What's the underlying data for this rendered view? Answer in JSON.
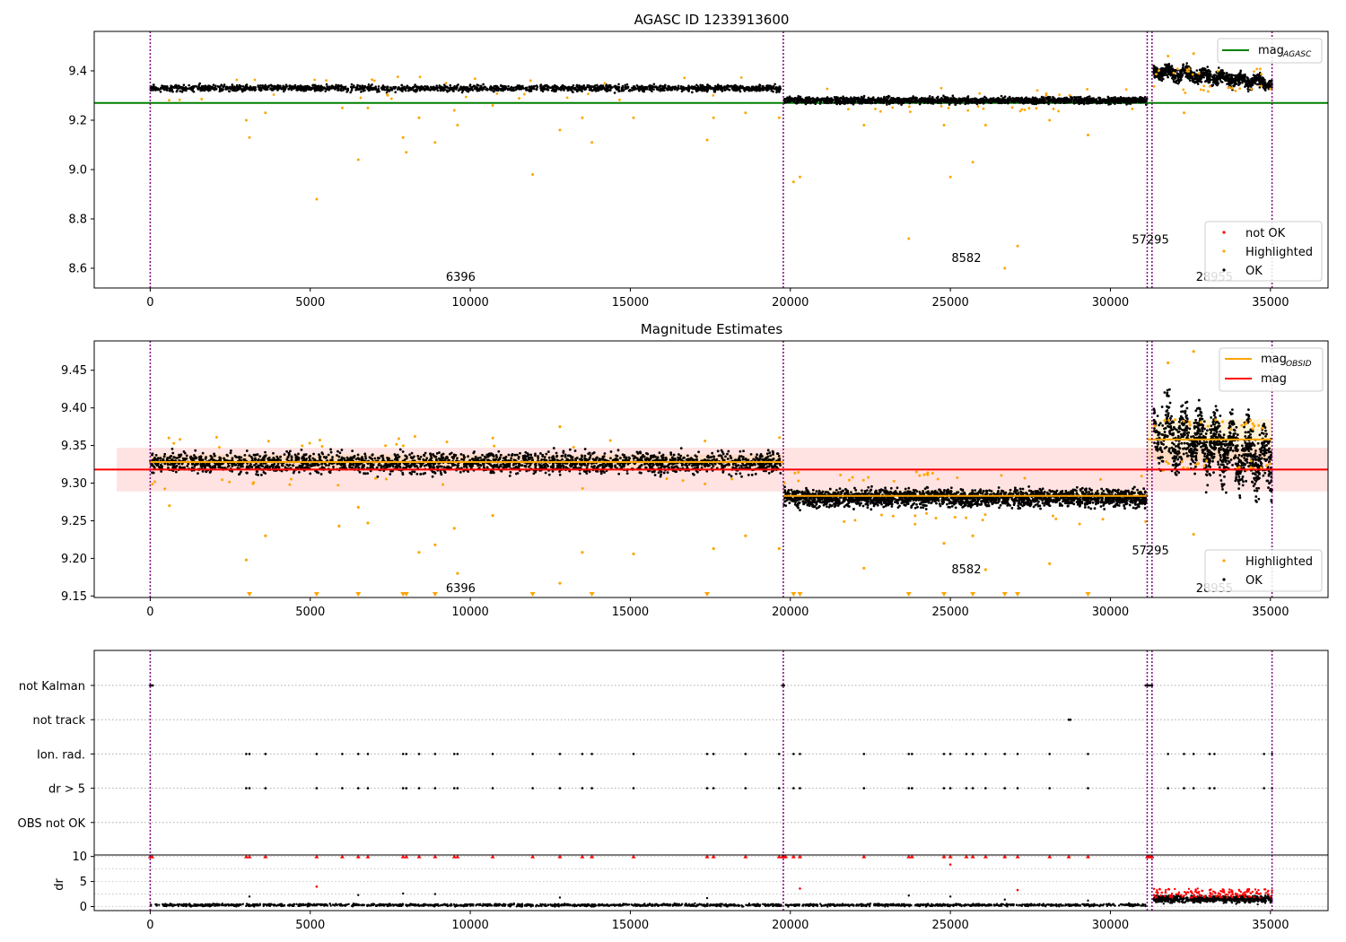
{
  "figure": {
    "panel1_title": "AGASC ID 1233913600",
    "panel2_title": "Magnitude Estimates"
  },
  "colors": {
    "ok": "#000000",
    "highlighted": "#ffa500",
    "not_ok": "#ff0000",
    "mag_agasc": "#008000",
    "mag": "#ff0000",
    "mag_obsid": "#ffa500",
    "obs_boundary": "#800080",
    "band": "#ffc0c0"
  },
  "chart_data": [
    {
      "type": "scatter",
      "title": "AGASC ID 1233913600",
      "xlim": [
        -1750,
        36800
      ],
      "ylim": [
        8.52,
        9.56
      ],
      "xticks": [
        "0",
        "5000",
        "10000",
        "15000",
        "20000",
        "25000",
        "30000",
        "35000",
        "40000"
      ],
      "yticks": [
        "8.6",
        "8.8",
        "9.0",
        "9.2",
        "9.4"
      ],
      "legend_lines": [
        {
          "label": "mag",
          "subscript": "AGASC",
          "value": 9.27
        }
      ],
      "legend_points": [
        "not OK",
        "Highlighted",
        "OK"
      ],
      "obs_boundaries": [
        0,
        19780,
        31150,
        31300,
        35050
      ],
      "obs_labels": [
        {
          "text": "6396",
          "x": 9700,
          "y": 8.55
        },
        {
          "text": "8582",
          "x": 25500,
          "y": 8.625
        },
        {
          "text": "57295",
          "x": 31250,
          "y": 8.7
        },
        {
          "text": "28955",
          "x": 33250,
          "y": 8.55
        }
      ],
      "segments": [
        {
          "x0": 0,
          "x1": 19700,
          "level": 9.33
        },
        {
          "x0": 19800,
          "x1": 31150,
          "level": 9.28
        },
        {
          "x0": 31350,
          "x1": 35050,
          "level": 9.36
        }
      ],
      "highlighted_outliers": [
        [
          3000,
          9.2
        ],
        [
          3100,
          9.13
        ],
        [
          3600,
          9.23
        ],
        [
          5200,
          8.88
        ],
        [
          6000,
          9.25
        ],
        [
          6500,
          9.04
        ],
        [
          6800,
          9.25
        ],
        [
          7900,
          9.13
        ],
        [
          8000,
          9.07
        ],
        [
          8400,
          9.21
        ],
        [
          8900,
          9.11
        ],
        [
          9500,
          9.24
        ],
        [
          9600,
          9.18
        ],
        [
          10700,
          9.26
        ],
        [
          11950,
          8.98
        ],
        [
          12800,
          9.16
        ],
        [
          13500,
          9.21
        ],
        [
          13800,
          9.11
        ],
        [
          15100,
          9.21
        ],
        [
          17400,
          9.12
        ],
        [
          17600,
          9.21
        ],
        [
          18600,
          9.23
        ],
        [
          19650,
          9.21
        ],
        [
          20100,
          8.95
        ],
        [
          20300,
          8.97
        ],
        [
          22300,
          9.18
        ],
        [
          23700,
          8.72
        ],
        [
          24800,
          9.18
        ],
        [
          25000,
          8.97
        ],
        [
          25700,
          9.03
        ],
        [
          26100,
          9.18
        ],
        [
          26700,
          8.6
        ],
        [
          27100,
          8.69
        ],
        [
          28100,
          9.2
        ],
        [
          29300,
          9.14
        ],
        [
          32300,
          9.23
        ],
        [
          31800,
          9.46
        ],
        [
          32600,
          9.47
        ]
      ]
    },
    {
      "type": "scatter",
      "title": "Magnitude Estimates",
      "xlim": [
        -1750,
        36800
      ],
      "ylim": [
        9.148,
        9.489
      ],
      "xticks": [
        "0",
        "5000",
        "10000",
        "15000",
        "20000",
        "25000",
        "30000",
        "35000",
        "40000"
      ],
      "yticks": [
        "9.15",
        "9.20",
        "9.25",
        "9.30",
        "9.35",
        "9.40",
        "9.45"
      ],
      "legend_lines": [
        {
          "label": "mag",
          "subscript": "OBSID",
          "color_key": "mag_obsid"
        },
        {
          "label": "mag",
          "subscript": "",
          "color_key": "mag"
        }
      ],
      "legend_points": [
        "Highlighted",
        "OK"
      ],
      "mag": 9.318,
      "mag_band": [
        9.289,
        9.347
      ],
      "mag_obsid": [
        {
          "x0": 0,
          "x1": 19780,
          "value": 9.328,
          "band": [
            9.318,
            9.338
          ]
        },
        {
          "x0": 19780,
          "x1": 31150,
          "value": 9.283,
          "band": [
            9.275,
            9.291
          ]
        },
        {
          "x0": 31150,
          "x1": 35050,
          "value": 9.358,
          "band": [
            9.33,
            9.385
          ]
        }
      ],
      "obs_boundaries": [
        0,
        19780,
        31150,
        31300,
        35050
      ],
      "obs_labels": [
        {
          "text": "6396",
          "x": 9700,
          "y": 9.155
        },
        {
          "text": "8582",
          "x": 25500,
          "y": 9.18
        },
        {
          "text": "57295",
          "x": 31250,
          "y": 9.205
        },
        {
          "text": "28955",
          "x": 33250,
          "y": 9.155
        }
      ],
      "segments": [
        {
          "x0": 0,
          "x1": 19700,
          "level": 9.327,
          "spread": 0.022
        },
        {
          "x0": 19800,
          "x1": 31150,
          "level": 9.28,
          "spread": 0.018
        },
        {
          "x0": 31350,
          "x1": 35050,
          "level": 9.35,
          "spread": 0.07
        }
      ],
      "clipped_markers_x": [
        3100,
        5200,
        6500,
        7900,
        8000,
        8900,
        11950,
        13800,
        17400,
        20100,
        20300,
        23700,
        24800,
        25700,
        26700,
        27100,
        29300
      ],
      "highlighted_outliers": [
        [
          3000,
          9.198
        ],
        [
          3600,
          9.23
        ],
        [
          5900,
          9.243
        ],
        [
          6500,
          9.268
        ],
        [
          6800,
          9.247
        ],
        [
          8400,
          9.208
        ],
        [
          8900,
          9.218
        ],
        [
          9500,
          9.24
        ],
        [
          9600,
          9.18
        ],
        [
          10700,
          9.257
        ],
        [
          12800,
          9.167
        ],
        [
          13500,
          9.208
        ],
        [
          15100,
          9.206
        ],
        [
          17600,
          9.213
        ],
        [
          18600,
          9.23
        ],
        [
          19650,
          9.213
        ],
        [
          22300,
          9.187
        ],
        [
          24800,
          9.22
        ],
        [
          25700,
          9.23
        ],
        [
          26100,
          9.185
        ],
        [
          28100,
          9.193
        ],
        [
          32600,
          9.232
        ],
        [
          31800,
          9.46
        ],
        [
          32600,
          9.475
        ],
        [
          600,
          9.27
        ],
        [
          12800,
          9.375
        ]
      ]
    },
    {
      "type": "scatter",
      "title": "",
      "xlim": [
        -1750,
        36800
      ],
      "categories": [
        "not Kalman",
        "not track",
        "Ion. rad.",
        "dr > 5",
        "OBS not OK"
      ],
      "flags": {
        "not Kalman": [
          0,
          40,
          80,
          19750,
          19800,
          31100,
          31150,
          31200,
          31250,
          31300
        ],
        "not track": [
          28700,
          28750
        ],
        "Ion. rad.": [
          3000,
          3100,
          3600,
          5200,
          6000,
          6500,
          6800,
          7900,
          8000,
          8400,
          8900,
          9500,
          9600,
          10700,
          11950,
          12800,
          13500,
          13800,
          15100,
          17400,
          17600,
          18600,
          19650,
          20100,
          20300,
          22300,
          23700,
          23800,
          24800,
          25000,
          25500,
          25700,
          26100,
          26700,
          27100,
          28100,
          29300,
          31800,
          32300,
          32600,
          33100,
          33250,
          34800,
          35050
        ],
        "dr > 5": [
          3000,
          3100,
          3600,
          5200,
          6000,
          6500,
          6800,
          7900,
          8000,
          8400,
          8900,
          9500,
          9600,
          10700,
          11950,
          12800,
          13500,
          13800,
          15100,
          17400,
          17600,
          18600,
          19650,
          20100,
          20300,
          22300,
          23700,
          23800,
          24800,
          25000,
          25500,
          25700,
          26100,
          26700,
          27100,
          28100,
          29300,
          31800,
          32300,
          32600,
          33100,
          33250,
          34800,
          35050
        ],
        "OBS not OK": []
      },
      "obs_boundaries": [
        0,
        19780,
        31150,
        31300,
        35050
      ]
    },
    {
      "type": "scatter",
      "title": "",
      "ylabel": "dr",
      "xlim": [
        -1750,
        36800
      ],
      "ylim": [
        -0.8,
        10.3
      ],
      "xticks": [
        "0",
        "5000",
        "10000",
        "15000",
        "20000",
        "25000",
        "30000",
        "35000",
        "40000"
      ],
      "yticks": [
        "0",
        "5",
        "10"
      ],
      "clipped_x": [
        0,
        60,
        3000,
        3100,
        3600,
        5200,
        6000,
        6500,
        6800,
        7900,
        8000,
        8400,
        8900,
        9500,
        9600,
        10700,
        11950,
        12800,
        13500,
        13800,
        15100,
        17400,
        17600,
        18600,
        19650,
        19750,
        19800,
        19850,
        20100,
        20300,
        22300,
        23700,
        23800,
        24800,
        25000,
        25500,
        25700,
        26100,
        26700,
        27100,
        28100,
        28700,
        29300,
        31150,
        31200,
        31250,
        31300
      ],
      "red_points": [
        [
          5200,
          4.0
        ],
        [
          25000,
          8.4
        ],
        [
          20300,
          3.6
        ],
        [
          27100,
          3.3
        ]
      ],
      "black_outliers": [
        [
          3100,
          2.0
        ],
        [
          6500,
          2.3
        ],
        [
          7900,
          2.6
        ],
        [
          8900,
          2.5
        ],
        [
          12800,
          1.8
        ],
        [
          17400,
          1.7
        ],
        [
          23700,
          2.2
        ],
        [
          25000,
          2.0
        ],
        [
          26700,
          1.4
        ],
        [
          29300,
          1.2
        ]
      ],
      "segments": [
        {
          "x0": 0,
          "x1": 31100,
          "level": 0.3,
          "spread": 0.35
        },
        {
          "x0": 31350,
          "x1": 35050,
          "level": 1.5,
          "spread": 1.0
        }
      ],
      "obs_boundaries": [
        0,
        19780,
        31150,
        31300,
        35050
      ]
    }
  ]
}
